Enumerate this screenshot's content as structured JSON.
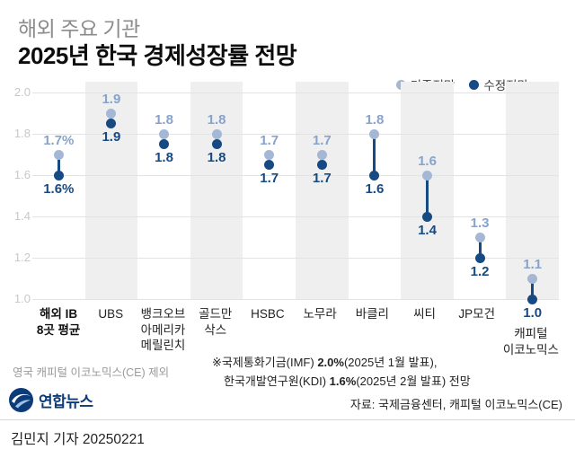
{
  "header": {
    "subtitle": "해외 주요 기관",
    "title": "2025년 한국 경제성장률 전망"
  },
  "legend": {
    "prev_label": "기존전망",
    "rev_label": "수정전망"
  },
  "colors": {
    "prev": "#a4b8d6",
    "prev_text": "#87a3cb",
    "rev": "#174a82",
    "stripe": "#efefef",
    "grid": "#e3e3e3",
    "axis_text": "#c8c8c8"
  },
  "chart_data": {
    "type": "dumbbell",
    "title": "2025년 한국 경제성장률 전망",
    "ylim": [
      1.0,
      2.0
    ],
    "yticks": [
      "2.0",
      "1.8",
      "1.6",
      "1.4",
      "1.2",
      "1.0"
    ],
    "grid": true,
    "legend_position": "top-right",
    "series": [
      {
        "name": "기존전망",
        "values": [
          1.7,
          1.9,
          1.8,
          1.8,
          1.7,
          1.7,
          1.8,
          1.6,
          1.3,
          1.1
        ]
      },
      {
        "name": "수정전망",
        "values": [
          1.6,
          1.9,
          1.8,
          1.8,
          1.7,
          1.7,
          1.6,
          1.4,
          1.2,
          1.0
        ]
      }
    ],
    "categories": [
      {
        "lines": [
          "해외 IB",
          "8곳 평균"
        ],
        "prev": 1.7,
        "rev": 1.6,
        "prev_label": "1.7%",
        "rev_label": "1.6%"
      },
      {
        "lines": [
          "UBS"
        ],
        "prev": 1.9,
        "rev": 1.9,
        "prev_label": "1.9",
        "rev_label": "1.9"
      },
      {
        "lines": [
          "뱅크오브",
          "아메리카",
          "메릴린치"
        ],
        "prev": 1.8,
        "rev": 1.8,
        "prev_label": "1.8",
        "rev_label": "1.8"
      },
      {
        "lines": [
          "골드만",
          "삭스"
        ],
        "prev": 1.8,
        "rev": 1.8,
        "prev_label": "1.8",
        "rev_label": "1.8"
      },
      {
        "lines": [
          "HSBC"
        ],
        "prev": 1.7,
        "rev": 1.7,
        "prev_label": "1.7",
        "rev_label": "1.7"
      },
      {
        "lines": [
          "노무라"
        ],
        "prev": 1.7,
        "rev": 1.7,
        "prev_label": "1.7",
        "rev_label": "1.7"
      },
      {
        "lines": [
          "바클리"
        ],
        "prev": 1.8,
        "rev": 1.6,
        "prev_label": "1.8",
        "rev_label": "1.6"
      },
      {
        "lines": [
          "씨티"
        ],
        "prev": 1.6,
        "rev": 1.4,
        "prev_label": "1.6",
        "rev_label": "1.4"
      },
      {
        "lines": [
          "JP모건"
        ],
        "prev": 1.3,
        "rev": 1.2,
        "prev_label": "1.3",
        "rev_label": "1.2"
      },
      {
        "lines": [
          "캐피털",
          "이코노믹스"
        ],
        "prev": 1.1,
        "rev": 1.0,
        "prev_label": "1.1",
        "rev_label": "1.0"
      }
    ]
  },
  "notes": {
    "exclusion": "영국 캐피털 이코노믹스(CE) 제외",
    "ref_line1_prefix": "※국제통화기금(IMF) ",
    "ref_line1_value": "2.0%",
    "ref_line1_suffix": "(2025년 1월 발표),",
    "ref_line2_prefix": "한국개발연구원(KDI) ",
    "ref_line2_value": "1.6%",
    "ref_line2_suffix": "(2025년 2월 발표) 전망",
    "source": "자료: 국제금융센터, 캐피털 이코노믹스(CE)"
  },
  "footer": {
    "logo_text": "연합뉴스",
    "byline": "김민지 기자 20250221"
  }
}
